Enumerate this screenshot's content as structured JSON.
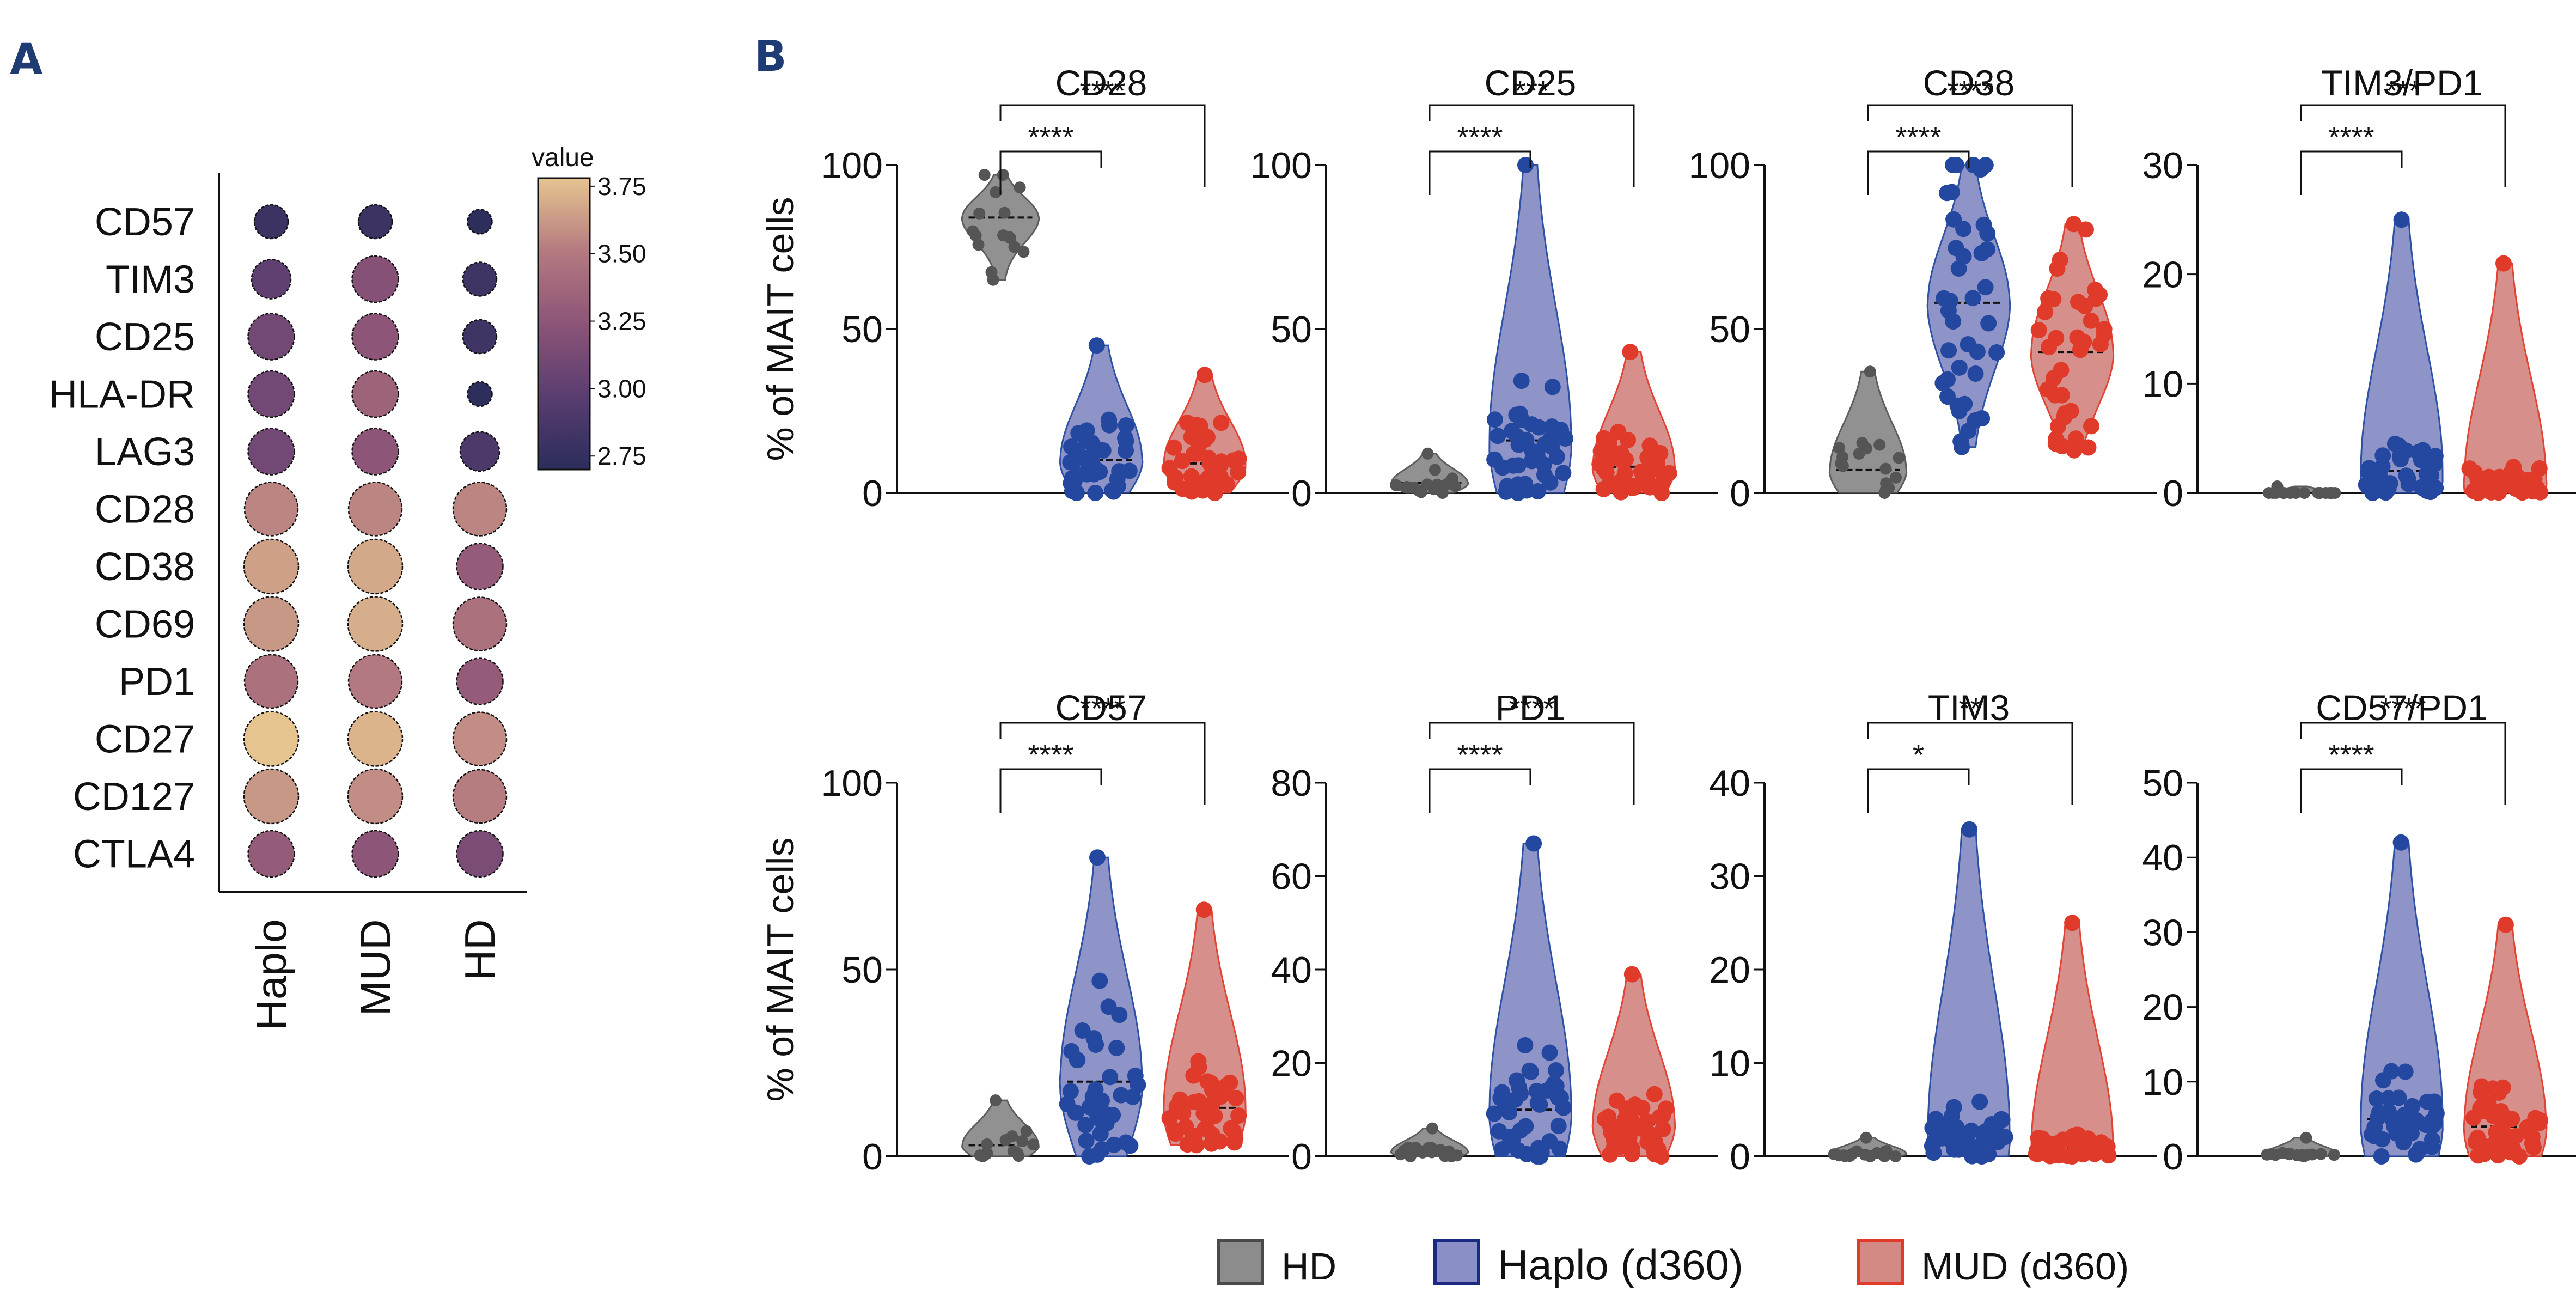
{
  "panel_labels": {
    "a": "A",
    "b": "B"
  },
  "legend": {
    "items": [
      {
        "label": "HD",
        "fill": "#8c8c8c",
        "stroke": "#4a4a4a"
      },
      {
        "label": "Haplo (d360)",
        "fill": "#8a8fc6",
        "stroke": "#1a2a80"
      },
      {
        "label": "MUD (d360)",
        "fill": "#d48a84",
        "stroke": "#e03a2a"
      }
    ]
  },
  "colors": {
    "hd_point": "#555555",
    "hd_fill": "#8c8c8c",
    "haplo_point": "#2448a0",
    "haplo_fill": "#8a8fc6",
    "mud_point": "#e03a2a",
    "mud_fill": "#d48a84",
    "colormap": [
      "#2b2d5c",
      "#5a3d70",
      "#8c5478",
      "#b47a80",
      "#e6c490"
    ]
  },
  "chart_data": [
    {
      "type": "heatmap",
      "subtype": "dot-plot",
      "panel": "A",
      "categories_x": [
        "Haplo",
        "MUD",
        "HD"
      ],
      "categories_y": [
        "CD57",
        "TIM3",
        "CD25",
        "HLA-DR",
        "LAG3",
        "CD28",
        "CD38",
        "CD69",
        "PD1",
        "CD27",
        "CD127",
        "CTLA4"
      ],
      "colorbar": {
        "title": "value",
        "ticks": [
          "3.75",
          "3.50",
          "3.25",
          "3.00",
          "2.75"
        ],
        "range": [
          2.7,
          3.78
        ]
      },
      "values": [
        [
          2.8,
          2.8,
          2.72
        ],
        [
          3.0,
          3.2,
          2.82
        ],
        [
          3.1,
          3.25,
          2.82
        ],
        [
          3.1,
          3.35,
          2.72
        ],
        [
          3.1,
          3.25,
          2.9
        ],
        [
          3.55,
          3.55,
          3.55
        ],
        [
          3.65,
          3.68,
          3.3
        ],
        [
          3.62,
          3.7,
          3.45
        ],
        [
          3.45,
          3.5,
          3.3
        ],
        [
          3.78,
          3.72,
          3.58
        ],
        [
          3.62,
          3.58,
          3.52
        ],
        [
          3.3,
          3.25,
          3.15
        ]
      ],
      "sizes": [
        [
          0.62,
          0.62,
          0.45
        ],
        [
          0.72,
          0.85,
          0.62
        ],
        [
          0.85,
          0.85,
          0.62
        ],
        [
          0.85,
          0.85,
          0.45
        ],
        [
          0.85,
          0.85,
          0.72
        ],
        [
          0.98,
          0.98,
          0.98
        ],
        [
          1.0,
          1.0,
          0.85
        ],
        [
          1.0,
          1.0,
          0.98
        ],
        [
          0.98,
          0.98,
          0.85
        ],
        [
          1.0,
          1.0,
          0.98
        ],
        [
          1.0,
          1.0,
          0.98
        ],
        [
          0.85,
          0.85,
          0.85
        ]
      ]
    },
    {
      "type": "violin",
      "panel": "B",
      "groups": [
        "HD",
        "Haplo (d360)",
        "MUD (d360)"
      ],
      "ylabel": "% of MAIT cells",
      "plots": [
        {
          "title": "CD28",
          "ylim": [
            0,
            100
          ],
          "yticks": [
            "0",
            "50",
            "100"
          ],
          "min": [
            65,
            0,
            0
          ],
          "max": [
            97,
            45,
            36
          ],
          "median": [
            84,
            10,
            9
          ],
          "sig": [
            {
              "label": "****",
              "pair": [
                0,
                1
              ]
            },
            {
              "label": "****",
              "pair": [
                0,
                2
              ]
            }
          ]
        },
        {
          "title": "CD25",
          "ylim": [
            0,
            100
          ],
          "yticks": [
            "0",
            "50",
            "100"
          ],
          "min": [
            0,
            0,
            0
          ],
          "max": [
            12,
            100,
            43
          ],
          "median": [
            3,
            16,
            8
          ],
          "sig": [
            {
              "label": "****",
              "pair": [
                0,
                1
              ]
            },
            {
              "label": "***",
              "pair": [
                0,
                2
              ]
            }
          ]
        },
        {
          "title": "CD38",
          "ylim": [
            0,
            100
          ],
          "yticks": [
            "0",
            "50",
            "100"
          ],
          "min": [
            0,
            14,
            13
          ],
          "max": [
            37,
            100,
            82
          ],
          "median": [
            7,
            58,
            43
          ],
          "sig": [
            {
              "label": "****",
              "pair": [
                0,
                1
              ]
            },
            {
              "label": "****",
              "pair": [
                0,
                2
              ]
            }
          ]
        },
        {
          "title": "TIM3/PD1",
          "ylim": [
            0,
            30
          ],
          "yticks": [
            "0",
            "10",
            "20",
            "30"
          ],
          "min": [
            0,
            0,
            0
          ],
          "max": [
            0.6,
            25,
            21
          ],
          "median": [
            0,
            2,
            1
          ],
          "sig": [
            {
              "label": "****",
              "pair": [
                0,
                1
              ]
            },
            {
              "label": "***",
              "pair": [
                0,
                2
              ]
            }
          ]
        },
        {
          "title": "CD57",
          "ylim": [
            0,
            100
          ],
          "yticks": [
            "0",
            "50",
            "100"
          ],
          "min": [
            0,
            0,
            3
          ],
          "max": [
            15,
            80,
            66
          ],
          "median": [
            3,
            20,
            13
          ],
          "sig": [
            {
              "label": "****",
              "pair": [
                0,
                1
              ]
            },
            {
              "label": "****",
              "pair": [
                0,
                2
              ]
            }
          ]
        },
        {
          "title": "PD1",
          "ylim": [
            0,
            80
          ],
          "yticks": [
            "0",
            "20",
            "40",
            "60",
            "80"
          ],
          "min": [
            0,
            0,
            0
          ],
          "max": [
            6,
            67,
            39
          ],
          "median": [
            1,
            10,
            7
          ],
          "sig": [
            {
              "label": "****",
              "pair": [
                0,
                1
              ]
            },
            {
              "label": "****",
              "pair": [
                0,
                2
              ]
            }
          ]
        },
        {
          "title": "TIM3",
          "ylim": [
            0,
            40
          ],
          "yticks": [
            "0",
            "10",
            "20",
            "30",
            "40"
          ],
          "min": [
            0,
            0,
            0
          ],
          "max": [
            2,
            35,
            25
          ],
          "median": [
            0.3,
            2.5,
            1
          ],
          "sig": [
            {
              "label": "*",
              "pair": [
                0,
                1
              ]
            },
            {
              "label": "**",
              "pair": [
                0,
                2
              ]
            }
          ]
        },
        {
          "title": "CD57/PD1",
          "ylim": [
            0,
            50
          ],
          "yticks": [
            "0",
            "10",
            "20",
            "30",
            "40",
            "50"
          ],
          "min": [
            0,
            0,
            0
          ],
          "max": [
            2.5,
            42,
            31
          ],
          "median": [
            0.2,
            5,
            4
          ],
          "sig": [
            {
              "label": "****",
              "pair": [
                0,
                1
              ]
            },
            {
              "label": "****",
              "pair": [
                0,
                2
              ]
            }
          ]
        }
      ]
    }
  ]
}
